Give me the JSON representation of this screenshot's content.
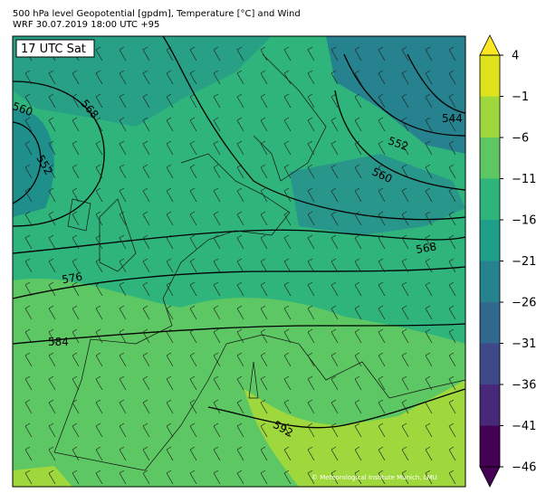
{
  "header": {
    "title": "500 hPa level Geopotential [gpdm], Temperature [°C] and Wind",
    "subtitle": "WRF 30.07.2019 18:00 UTC +95"
  },
  "map": {
    "time_label": "17 UTC Sat",
    "credit": "© Meteorological Institute Munich, LMU",
    "contour_labels": [
      "560",
      "568",
      "552",
      "544",
      "552",
      "560",
      "568",
      "576",
      "584",
      "592"
    ]
  },
  "colorbar": {
    "ticks": [
      {
        "value": 4,
        "label": "4"
      },
      {
        "value": -1,
        "label": "−1"
      },
      {
        "value": -6,
        "label": "−6"
      },
      {
        "value": -11,
        "label": "−11"
      },
      {
        "value": -16,
        "label": "−16"
      },
      {
        "value": -21,
        "label": "−21"
      },
      {
        "value": -26,
        "label": "−26"
      },
      {
        "value": -31,
        "label": "−31"
      },
      {
        "value": -36,
        "label": "−36"
      },
      {
        "value": -41,
        "label": "−41"
      },
      {
        "value": -46,
        "label": "−46"
      }
    ],
    "colors": [
      "#dfe31c",
      "#9fd83c",
      "#5dc863",
      "#2fb47c",
      "#1f9e89",
      "#26828e",
      "#31688e",
      "#3e4989",
      "#482878",
      "#440154"
    ],
    "extend_colors": [
      "#fde725",
      "#440154"
    ]
  }
}
